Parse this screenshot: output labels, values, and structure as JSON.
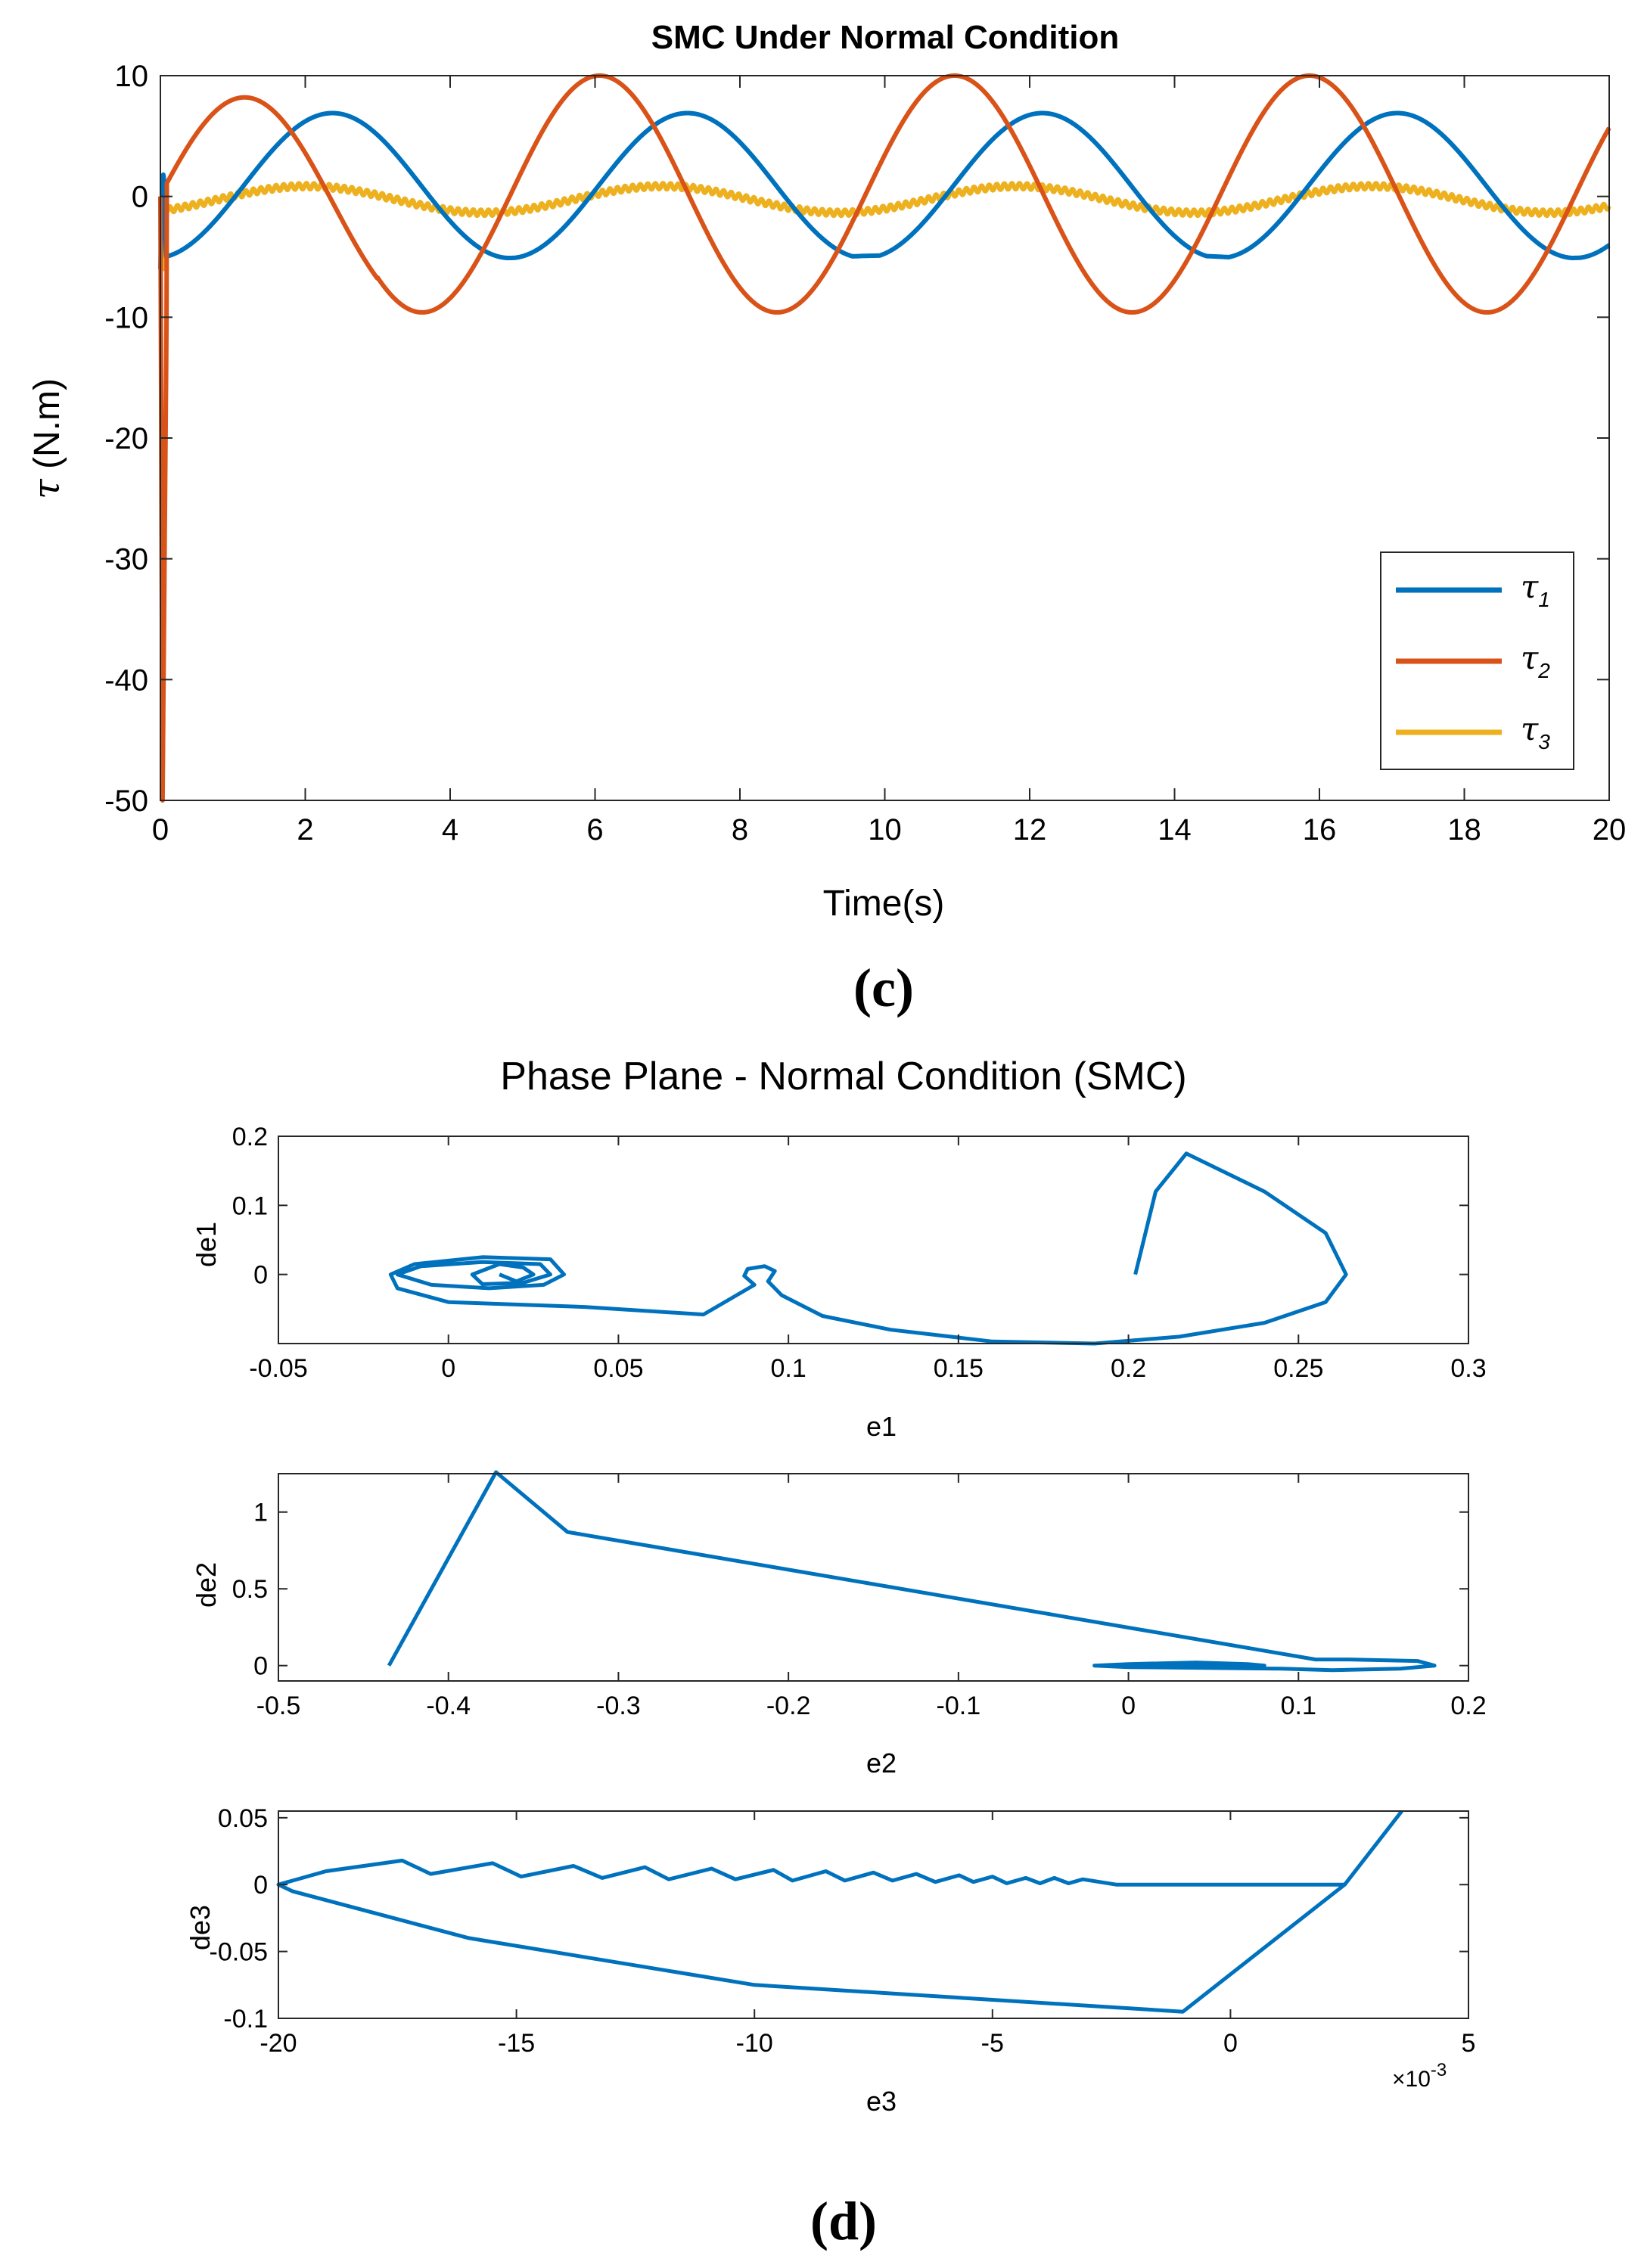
{
  "chart_data": [
    {
      "id": "c",
      "type": "line",
      "panel_label": "(c)",
      "title": "SMC Under Normal Condition",
      "xlabel": "Time(s)",
      "ylabel_symbol": "τ",
      "ylabel_units": " (N.m)",
      "xlim": [
        0,
        20
      ],
      "ylim": [
        -50,
        10
      ],
      "xticks": [
        0,
        2,
        4,
        6,
        8,
        10,
        12,
        14,
        16,
        18,
        20
      ],
      "yticks": [
        -50,
        -40,
        -30,
        -20,
        -10,
        0,
        10
      ],
      "legend_position": "bottom-right",
      "series": [
        {
          "name": "τ",
          "subscript": "1",
          "color": "#0072BD",
          "model": "tau1"
        },
        {
          "name": "τ",
          "subscript": "2",
          "color": "#D95319",
          "model": "tau2"
        },
        {
          "name": "τ",
          "subscript": "3",
          "color": "#EDB120",
          "model": "tau3"
        }
      ],
      "initial_transient": {
        "tau1_peak": 1.8,
        "tau2_min": -50,
        "tau3_min": -6
      }
    },
    {
      "id": "d",
      "type": "line",
      "panel_label": "(d)",
      "suptitle": "Phase Plane - Normal Condition (SMC)",
      "subplots": [
        {
          "name": "e1-de1",
          "xlabel": "e1",
          "ylabel": "de1",
          "xlim": [
            -0.05,
            0.3
          ],
          "ylim": [
            -0.1,
            0.2
          ],
          "xticks": [
            -0.05,
            0,
            0.05,
            0.1,
            0.15,
            0.2,
            0.25,
            0.3
          ],
          "yticks": [
            0,
            0.1,
            0.2
          ],
          "color": "#0072BD",
          "points": [
            [
              0.202,
              0.0
            ],
            [
              0.208,
              0.12
            ],
            [
              0.217,
              0.175
            ],
            [
              0.24,
              0.12
            ],
            [
              0.258,
              0.06
            ],
            [
              0.264,
              0.0
            ],
            [
              0.258,
              -0.04
            ],
            [
              0.24,
              -0.07
            ],
            [
              0.215,
              -0.09
            ],
            [
              0.19,
              -0.1
            ],
            [
              0.16,
              -0.097
            ],
            [
              0.13,
              -0.08
            ],
            [
              0.11,
              -0.06
            ],
            [
              0.098,
              -0.03
            ],
            [
              0.094,
              -0.01
            ],
            [
              0.096,
              0.005
            ],
            [
              0.093,
              0.012
            ],
            [
              0.088,
              0.008
            ],
            [
              0.087,
              -0.002
            ],
            [
              0.09,
              -0.015
            ],
            [
              0.075,
              -0.058
            ],
            [
              0.04,
              -0.047
            ],
            [
              0.0,
              -0.04
            ],
            [
              -0.015,
              -0.02
            ],
            [
              -0.017,
              0.0
            ],
            [
              -0.01,
              0.015
            ],
            [
              0.01,
              0.025
            ],
            [
              0.03,
              0.022
            ],
            [
              0.034,
              0.0
            ],
            [
              0.028,
              -0.015
            ],
            [
              0.012,
              -0.02
            ],
            [
              -0.005,
              -0.015
            ],
            [
              -0.015,
              0.0
            ],
            [
              -0.008,
              0.012
            ],
            [
              0.01,
              0.018
            ],
            [
              0.027,
              0.015
            ],
            [
              0.03,
              0.0
            ],
            [
              0.022,
              -0.012
            ],
            [
              0.01,
              -0.014
            ],
            [
              0.007,
              0.0
            ],
            [
              0.015,
              0.015
            ],
            [
              0.022,
              0.01
            ],
            [
              0.025,
              0.0
            ],
            [
              0.02,
              -0.01
            ],
            [
              0.015,
              0.0
            ]
          ]
        },
        {
          "name": "e2-de2",
          "xlabel": "e2",
          "ylabel": "de2",
          "xlim": [
            -0.5,
            0.2
          ],
          "ylim": [
            -0.1,
            1.25
          ],
          "xticks": [
            -0.5,
            -0.4,
            -0.3,
            -0.2,
            -0.1,
            0,
            0.1,
            0.2
          ],
          "yticks": [
            0,
            0.5,
            1
          ],
          "color": "#0072BD",
          "points": [
            [
              -0.435,
              0.0
            ],
            [
              -0.372,
              1.26
            ],
            [
              -0.33,
              0.87
            ],
            [
              0.11,
              0.04
            ],
            [
              0.13,
              0.04
            ],
            [
              0.17,
              0.03
            ],
            [
              0.18,
              0.0
            ],
            [
              0.16,
              -0.02
            ],
            [
              0.12,
              -0.03
            ],
            [
              0.09,
              -0.02
            ],
            [
              0.0,
              -0.01
            ],
            [
              -0.02,
              0.0
            ],
            [
              0.0,
              0.01
            ],
            [
              0.04,
              0.02
            ],
            [
              0.07,
              0.01
            ],
            [
              0.08,
              0.0
            ],
            [
              0.06,
              -0.015
            ],
            [
              0.03,
              -0.012
            ],
            [
              0.005,
              0.0
            ],
            [
              0.03,
              0.012
            ],
            [
              0.06,
              0.008
            ],
            [
              0.065,
              0.0
            ],
            [
              0.045,
              -0.008
            ],
            [
              0.025,
              0.0
            ],
            [
              0.04,
              0.006
            ],
            [
              0.05,
              0.0
            ]
          ]
        },
        {
          "name": "e3-de3",
          "xlabel": "e3",
          "ylabel": "de3",
          "x_multiplier": "×10",
          "x_multiplier_exp": "-3",
          "xlim": [
            -20,
            5
          ],
          "ylim": [
            -0.1,
            0.055
          ],
          "xticks": [
            -20,
            -15,
            -10,
            -5,
            0,
            5
          ],
          "yticks": [
            -0.1,
            -0.05,
            0,
            0.05
          ],
          "color": "#0072BD",
          "points_note": "x values in units of 1e-3",
          "points": [
            [
              3.6,
              0.055
            ],
            [
              2.4,
              0.0
            ],
            [
              -1.0,
              -0.095
            ],
            [
              -10.0,
              -0.075
            ],
            [
              -16.0,
              -0.04
            ],
            [
              -19.7,
              -0.005
            ],
            [
              -20.0,
              0.0
            ],
            [
              -19.0,
              0.01
            ],
            [
              -17.4,
              0.018
            ],
            [
              -16.8,
              0.008
            ],
            [
              -15.5,
              0.016
            ],
            [
              -14.9,
              0.006
            ],
            [
              -13.8,
              0.014
            ],
            [
              -13.2,
              0.005
            ],
            [
              -12.3,
              0.013
            ],
            [
              -11.8,
              0.004
            ],
            [
              -10.9,
              0.012
            ],
            [
              -10.4,
              0.004
            ],
            [
              -9.6,
              0.011
            ],
            [
              -9.2,
              0.003
            ],
            [
              -8.5,
              0.01
            ],
            [
              -8.1,
              0.003
            ],
            [
              -7.5,
              0.009
            ],
            [
              -7.1,
              0.003
            ],
            [
              -6.6,
              0.008
            ],
            [
              -6.2,
              0.002
            ],
            [
              -5.7,
              0.007
            ],
            [
              -5.4,
              0.002
            ],
            [
              -5.0,
              0.006
            ],
            [
              -4.7,
              0.001
            ],
            [
              -4.3,
              0.005
            ],
            [
              -4.0,
              0.001
            ],
            [
              -3.7,
              0.005
            ],
            [
              -3.4,
              0.001
            ],
            [
              -3.1,
              0.004
            ],
            [
              -2.4,
              0.0
            ],
            [
              2.4,
              0.0
            ],
            [
              3.6,
              0.055
            ]
          ]
        }
      ]
    }
  ]
}
